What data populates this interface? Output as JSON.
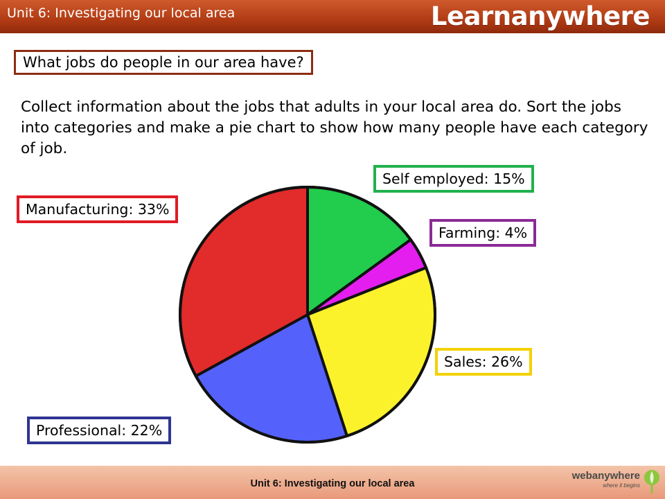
{
  "header": {
    "unit_title": "Unit 6: Investigating our local area",
    "brand": "Learnanywhere"
  },
  "question": "What jobs do people in our area have?",
  "instructions": "Collect information about the jobs that adults in your local area do. Sort the jobs into categories and make a pie chart to show how many people have each category of job.",
  "labels": {
    "self_employed": "Self employed: 15%",
    "manufacturing": "Manufacturing: 33%",
    "farming": "Farming: 4%",
    "sales": "Sales: 26%",
    "professional": "Professional: 22%"
  },
  "footer": {
    "unit_title": "Unit 6: Investigating our local area",
    "brand": "webanywhere",
    "tagline": "where it begins"
  },
  "chart_data": {
    "type": "pie",
    "categories": [
      "Self employed",
      "Farming",
      "Sales",
      "Professional",
      "Manufacturing"
    ],
    "values": [
      15,
      4,
      26,
      22,
      33
    ],
    "colors": [
      "#22cc4c",
      "#e41eef",
      "#fbf22c",
      "#5462fb",
      "#e22b2b"
    ],
    "start": "top",
    "direction": "clockwise"
  }
}
